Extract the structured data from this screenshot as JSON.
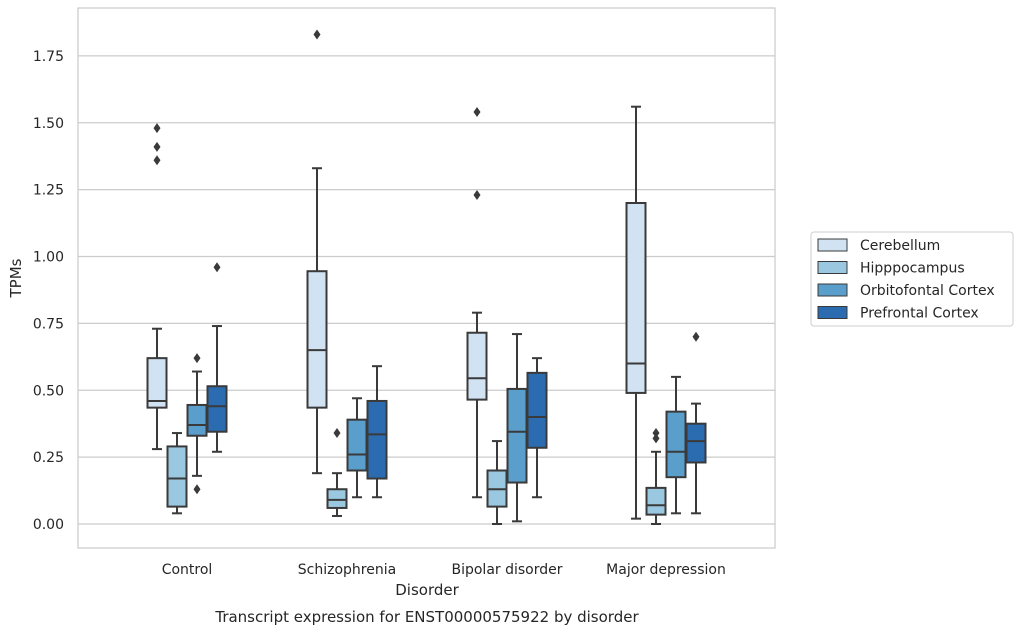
{
  "chart_data": {
    "type": "box",
    "title": "",
    "xlabel": "Disorder",
    "ylabel": "TPMs",
    "caption": "Transcript expression for ENST00000575922 by disorder",
    "ylim": [
      -0.09,
      1.93
    ],
    "yticks": [
      "0.00",
      "0.25",
      "0.50",
      "0.75",
      "1.00",
      "1.25",
      "1.50",
      "1.75"
    ],
    "categories": [
      "Control",
      "Schizophrenia",
      "Bipolar disorder",
      "Major depression"
    ],
    "grid": "horizontal",
    "legend_position": "right",
    "series": [
      {
        "name": "Cerebellum",
        "color": "#d1e2f2",
        "boxes": [
          {
            "whislo": 0.28,
            "q1": 0.435,
            "med": 0.46,
            "q3": 0.62,
            "whishi": 0.73,
            "fliers": [
              1.36,
              1.41,
              1.48
            ]
          },
          {
            "whislo": 0.19,
            "q1": 0.435,
            "med": 0.65,
            "q3": 0.945,
            "whishi": 1.33,
            "fliers": [
              1.83
            ]
          },
          {
            "whislo": 0.1,
            "q1": 0.465,
            "med": 0.545,
            "q3": 0.715,
            "whishi": 0.79,
            "fliers": [
              1.23,
              1.54
            ]
          },
          {
            "whislo": 0.02,
            "q1": 0.49,
            "med": 0.6,
            "q3": 1.2,
            "whishi": 1.56,
            "fliers": []
          }
        ]
      },
      {
        "name": "Hipppocampus",
        "color": "#9ac8e0",
        "boxes": [
          {
            "whislo": 0.04,
            "q1": 0.065,
            "med": 0.17,
            "q3": 0.29,
            "whishi": 0.34,
            "fliers": []
          },
          {
            "whislo": 0.03,
            "q1": 0.06,
            "med": 0.09,
            "q3": 0.13,
            "whishi": 0.19,
            "fliers": [
              0.34
            ]
          },
          {
            "whislo": 0.0,
            "q1": 0.065,
            "med": 0.13,
            "q3": 0.2,
            "whishi": 0.31,
            "fliers": []
          },
          {
            "whislo": 0.0,
            "q1": 0.035,
            "med": 0.07,
            "q3": 0.135,
            "whishi": 0.27,
            "fliers": [
              0.32,
              0.34
            ]
          }
        ]
      },
      {
        "name": "Orbitofontal Cortex",
        "color": "#5a9fcc",
        "boxes": [
          {
            "whislo": 0.18,
            "q1": 0.33,
            "med": 0.37,
            "q3": 0.445,
            "whishi": 0.57,
            "fliers": [
              0.13,
              0.62
            ]
          },
          {
            "whislo": 0.1,
            "q1": 0.2,
            "med": 0.26,
            "q3": 0.39,
            "whishi": 0.47,
            "fliers": []
          },
          {
            "whislo": 0.01,
            "q1": 0.155,
            "med": 0.345,
            "q3": 0.505,
            "whishi": 0.71,
            "fliers": []
          },
          {
            "whislo": 0.04,
            "q1": 0.175,
            "med": 0.27,
            "q3": 0.42,
            "whishi": 0.55,
            "fliers": []
          }
        ]
      },
      {
        "name": "Prefrontal Cortex",
        "color": "#2b6cb0",
        "boxes": [
          {
            "whislo": 0.27,
            "q1": 0.345,
            "med": 0.44,
            "q3": 0.515,
            "whishi": 0.74,
            "fliers": [
              0.96
            ]
          },
          {
            "whislo": 0.1,
            "q1": 0.17,
            "med": 0.335,
            "q3": 0.46,
            "whishi": 0.59,
            "fliers": []
          },
          {
            "whislo": 0.1,
            "q1": 0.285,
            "med": 0.4,
            "q3": 0.565,
            "whishi": 0.62,
            "fliers": []
          },
          {
            "whislo": 0.04,
            "q1": 0.23,
            "med": 0.31,
            "q3": 0.375,
            "whishi": 0.45,
            "fliers": [
              0.7
            ]
          }
        ]
      }
    ]
  }
}
